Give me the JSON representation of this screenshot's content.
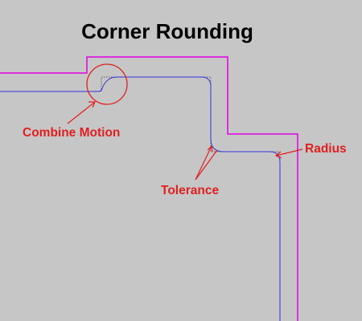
{
  "title": "Corner Rounding",
  "labels": {
    "combine_motion": "Combine Motion",
    "tolerance": "Tolerance",
    "radius": "Radius"
  },
  "colors": {
    "background": "#c6c6c6",
    "boundary": "#e000e0",
    "toolpath": "#3333dd",
    "annotation": "#e02020",
    "title": "#000000",
    "sharp_corner": "#5c5c5c"
  }
}
